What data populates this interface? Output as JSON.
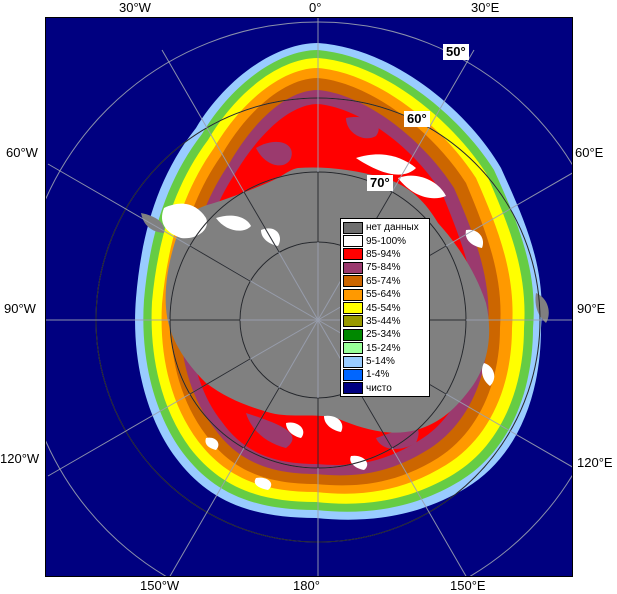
{
  "longitude_labels": {
    "top": [
      "30°W",
      "0°",
      "30°E"
    ],
    "bottom": [
      "150°W",
      "180°",
      "150°E"
    ],
    "left": [
      "60°W",
      "90°W",
      "120°W"
    ],
    "right": [
      "60°E",
      "90°E",
      "120°E"
    ]
  },
  "latitude_labels": [
    "50°",
    "60°",
    "70°"
  ],
  "legend": [
    {
      "label": "нет данных",
      "color": "#6e6e6e"
    },
    {
      "label": "95-100%",
      "color": "#ffffff"
    },
    {
      "label": "85-94%",
      "color": "#ff0000"
    },
    {
      "label": "75-84%",
      "color": "#9b3a6e"
    },
    {
      "label": "65-74%",
      "color": "#cc6600"
    },
    {
      "label": "55-64%",
      "color": "#ff9900"
    },
    {
      "label": "45-54%",
      "color": "#ffff00"
    },
    {
      "label": "35-44%",
      "color": "#999900"
    },
    {
      "label": "25-34%",
      "color": "#008800"
    },
    {
      "label": "15-24%",
      "color": "#99ff99"
    },
    {
      "label": "5-14%",
      "color": "#99ccff"
    },
    {
      "label": "1-4%",
      "color": "#0066ff"
    },
    {
      "label": "чисто",
      "color": "#000080"
    }
  ],
  "colors": {
    "ocean": "#000080",
    "land": "#808080",
    "grid": "#9aa0b0"
  }
}
